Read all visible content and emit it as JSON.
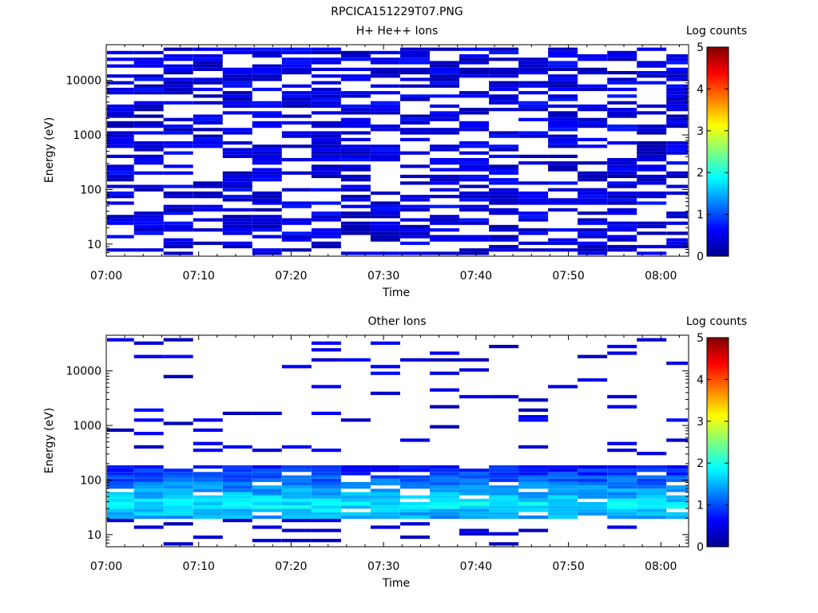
{
  "page_title": "RPCICA151229T07.PNG",
  "colorbar_ticks": [
    "0",
    "1",
    "2",
    "3",
    "4",
    "5"
  ],
  "chart_data": [
    {
      "type": "heatmap",
      "title": "H+ He++ Ions",
      "xlabel": "Time",
      "ylabel": "Energy (eV)",
      "colorbar_label": "Log counts",
      "colorbar_range": [
        0,
        5
      ],
      "x_ticks": [
        "07:00",
        "07:10",
        "07:20",
        "07:30",
        "07:40",
        "07:50",
        "08:00"
      ],
      "x_range_minutes": [
        0,
        63
      ],
      "y_scale": "log",
      "y_range": [
        6,
        45000
      ],
      "y_ticks": [
        "10",
        "100",
        "1000",
        "10000"
      ],
      "time_bins_min": [
        1.4,
        4.6,
        7.8,
        11.0,
        14.2,
        17.4,
        20.6,
        23.8,
        27.0,
        30.2,
        33.4,
        36.6,
        39.8,
        43.0,
        46.2,
        49.4,
        52.6,
        55.8,
        59.0,
        62.2
      ],
      "n_energy_bins": 62,
      "energy_bins_log10": [
        0.8,
        4.6
      ],
      "pattern": "sparse low-level counts (log counts 0-1) across 10 eV to 40 keV with many empty bins"
    },
    {
      "type": "heatmap",
      "title": "Other Ions",
      "xlabel": "Time",
      "ylabel": "Energy (eV)",
      "colorbar_label": "Log counts",
      "colorbar_range": [
        0,
        5
      ],
      "x_ticks": [
        "07:00",
        "07:10",
        "07:20",
        "07:30",
        "07:40",
        "07:50",
        "08:00"
      ],
      "x_range_minutes": [
        0,
        63
      ],
      "y_scale": "log",
      "y_range": [
        6,
        45000
      ],
      "y_ticks": [
        "10",
        "100",
        "1000",
        "10000"
      ],
      "time_bins_min": [
        1.4,
        4.6,
        7.8,
        11.0,
        14.2,
        17.4,
        20.6,
        23.8,
        27.0,
        30.2,
        33.4,
        36.6,
        39.8,
        43.0,
        46.2,
        49.4,
        52.6,
        55.8,
        59.0,
        62.2
      ],
      "dense_band_eV": [
        20,
        200
      ],
      "dense_band_peak_log_counts": 1.8,
      "pattern": "dense band 20-200 eV with peak near 30-50 eV (log counts ~1.5-2), sparse isolated counts above 300 eV"
    }
  ]
}
